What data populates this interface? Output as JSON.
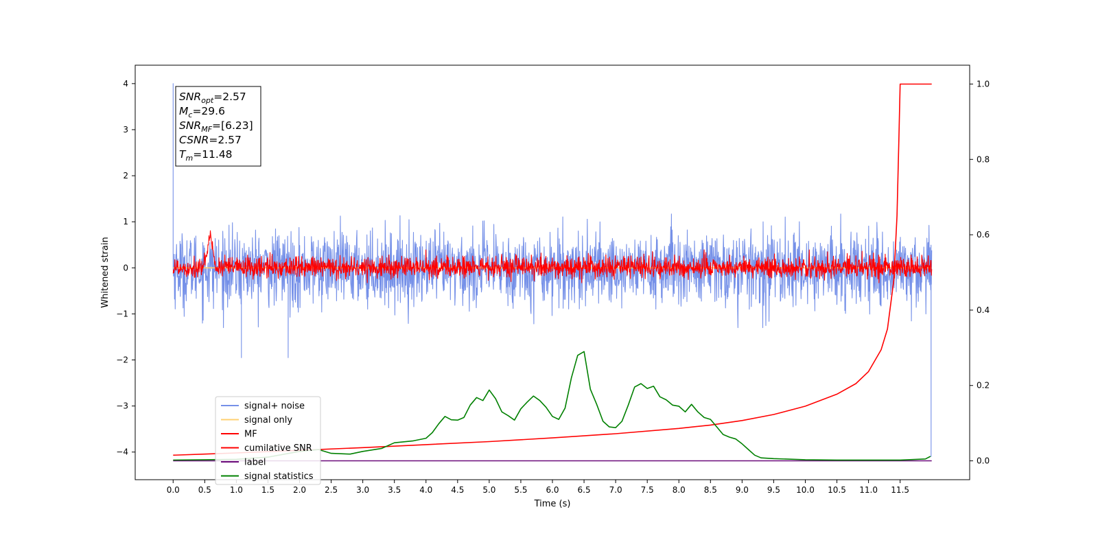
{
  "chart_data": {
    "type": "line",
    "title": "",
    "xlabel": "Time (s)",
    "ylabel": "Whitened strain",
    "ylabel_right": "",
    "xlim": [
      -0.6,
      12.6
    ],
    "ylim": [
      -4.6,
      4.4
    ],
    "ylim_right": [
      -0.05,
      1.05
    ],
    "grid": false,
    "legend_position": "lower-left",
    "x_ticks": [
      0.0,
      0.5,
      1.0,
      1.5,
      2.0,
      2.5,
      3.0,
      3.5,
      4.0,
      4.5,
      5.0,
      5.5,
      6.0,
      6.5,
      7.0,
      7.5,
      8.0,
      8.5,
      9.0,
      9.5,
      10.0,
      10.5,
      11.0,
      11.5
    ],
    "x_tick_labels": [
      "0.0",
      "0.5",
      "1.0",
      "1.5",
      "2.0",
      "2.5",
      "3.0",
      "3.5",
      "4.0",
      "4.5",
      "5.0",
      "5.5",
      "6.0",
      "6.5",
      "7.0",
      "7.5",
      "8.0",
      "8.5",
      "9.0",
      "9.5",
      "10.0",
      "10.5",
      "11.0",
      "11.5"
    ],
    "y_ticks": [
      4,
      3,
      2,
      1,
      0,
      -1,
      -2,
      -3,
      -4
    ],
    "y_tick_labels": [
      "4",
      "3",
      "2",
      "1",
      "0",
      "−1",
      "−2",
      "−3",
      "−4"
    ],
    "y_ticks_right": [
      1.0,
      0.8,
      0.6,
      0.4,
      0.2,
      0.0
    ],
    "y_tick_labels_right": [
      "1.0",
      "0.8",
      "0.6",
      "0.4",
      "0.2",
      "0.0"
    ],
    "annotation": {
      "lines": [
        {
          "base": "SNR",
          "sub": "opt",
          "rest": "=2.57"
        },
        {
          "base": "M",
          "sub": "c",
          "rest": "=29.6"
        },
        {
          "base": "SNR",
          "sub": "MF",
          "rest": "=[6.23]"
        },
        {
          "base": "CSNR",
          "sub": "",
          "rest": "=2.57"
        },
        {
          "base": "T",
          "sub": "m",
          "rest": "=11.48"
        }
      ]
    },
    "series": [
      {
        "name": "signal+ noise",
        "axis": "left",
        "color": "#7590e8",
        "style": "noise",
        "x_range": [
          0.0,
          12.0
        ],
        "amplitude_up": 0.9,
        "amplitude_down": 1.0,
        "spikes": [
          [
            0.0,
            4.0
          ],
          [
            0.0,
            2.2
          ],
          [
            1.08,
            -1.95
          ],
          [
            1.82,
            -1.95
          ],
          [
            11.99,
            -4.1
          ],
          [
            11.99,
            -2.8
          ]
        ]
      },
      {
        "name": "signal only",
        "axis": "left",
        "color": "#ffd070",
        "x": [
          0.0,
          12.0
        ],
        "y": [
          0.0,
          0.0
        ]
      },
      {
        "name": "MF",
        "axis": "left",
        "color": "#ff0000",
        "style": "noise",
        "x_range": [
          0.0,
          12.0
        ],
        "amplitude_up": 0.3,
        "amplitude_down": 0.25,
        "bump": {
          "x": [
            0.5,
            0.67
          ],
          "peak": 1.0
        }
      },
      {
        "name": "cumilative SNR",
        "axis": "right",
        "color": "#ff0000",
        "x": [
          0.0,
          0.5,
          1.0,
          2.0,
          3.0,
          4.0,
          5.0,
          6.0,
          7.0,
          8.0,
          8.5,
          9.0,
          9.5,
          10.0,
          10.5,
          10.8,
          11.0,
          11.2,
          11.3,
          11.4,
          11.45,
          11.48,
          11.5,
          12.0
        ],
        "y": [
          0.015,
          0.018,
          0.021,
          0.028,
          0.035,
          0.043,
          0.051,
          0.061,
          0.072,
          0.086,
          0.095,
          0.107,
          0.123,
          0.145,
          0.177,
          0.205,
          0.237,
          0.295,
          0.35,
          0.48,
          0.65,
          0.85,
          1.0,
          1.0
        ]
      },
      {
        "name": "label",
        "axis": "right",
        "color": "#6a0a7a",
        "x": [
          0.0,
          12.0
        ],
        "y": [
          0.0,
          0.0
        ]
      },
      {
        "name": "signal statistics",
        "axis": "right",
        "color": "#008000",
        "x": [
          0.0,
          0.5,
          1.0,
          1.5,
          2.0,
          2.3,
          2.5,
          2.8,
          3.0,
          3.3,
          3.5,
          3.8,
          4.0,
          4.1,
          4.2,
          4.3,
          4.4,
          4.5,
          4.6,
          4.7,
          4.8,
          4.9,
          5.0,
          5.1,
          5.2,
          5.3,
          5.4,
          5.5,
          5.6,
          5.7,
          5.8,
          5.9,
          6.0,
          6.1,
          6.2,
          6.3,
          6.4,
          6.5,
          6.6,
          6.7,
          6.8,
          6.9,
          7.0,
          7.1,
          7.2,
          7.3,
          7.4,
          7.5,
          7.6,
          7.7,
          7.8,
          7.9,
          8.0,
          8.1,
          8.2,
          8.3,
          8.4,
          8.5,
          8.6,
          8.7,
          8.8,
          8.9,
          9.0,
          9.1,
          9.2,
          9.3,
          9.5,
          10.0,
          10.5,
          11.0,
          11.5,
          11.9,
          11.98
        ],
        "y": [
          0.002,
          0.003,
          0.004,
          0.01,
          0.025,
          0.03,
          0.02,
          0.018,
          0.025,
          0.033,
          0.048,
          0.053,
          0.06,
          0.075,
          0.098,
          0.118,
          0.109,
          0.108,
          0.115,
          0.148,
          0.168,
          0.16,
          0.188,
          0.165,
          0.13,
          0.12,
          0.108,
          0.138,
          0.156,
          0.172,
          0.16,
          0.142,
          0.118,
          0.11,
          0.14,
          0.22,
          0.28,
          0.29,
          0.19,
          0.15,
          0.105,
          0.09,
          0.088,
          0.105,
          0.148,
          0.196,
          0.205,
          0.192,
          0.198,
          0.17,
          0.162,
          0.148,
          0.145,
          0.13,
          0.15,
          0.13,
          0.115,
          0.11,
          0.09,
          0.07,
          0.063,
          0.058,
          0.045,
          0.03,
          0.015,
          0.008,
          0.006,
          0.003,
          0.002,
          0.002,
          0.002,
          0.005,
          0.012
        ]
      }
    ]
  }
}
